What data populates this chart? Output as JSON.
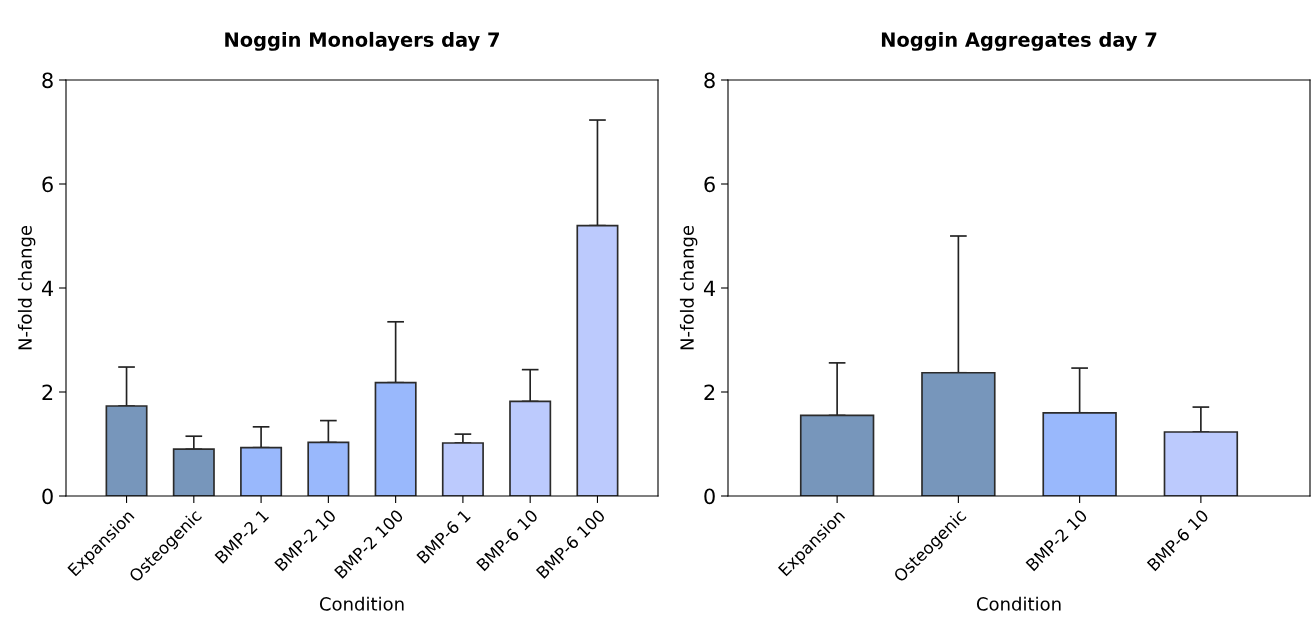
{
  "chart_data": [
    {
      "type": "bar",
      "title": "Noggin Monolayers day 7",
      "xlabel": "Condition",
      "ylabel": "N-fold change",
      "categories": [
        "Expansion",
        "Osteogenic",
        "BMP-2 1",
        "BMP-2 10",
        "BMP-2 100",
        "BMP-6 1",
        "BMP-6 10",
        "BMP-6 100"
      ],
      "values": [
        1.73,
        0.9,
        0.93,
        1.03,
        2.18,
        1.02,
        1.82,
        5.2
      ],
      "errors": [
        [
          1.73,
          2.48
        ],
        [
          0.9,
          1.15
        ],
        [
          0.93,
          1.33
        ],
        [
          1.03,
          1.45
        ],
        [
          2.18,
          3.35
        ],
        [
          1.02,
          1.19
        ],
        [
          1.82,
          2.43
        ],
        [
          5.2,
          7.23
        ]
      ],
      "colors": [
        "#7796bb",
        "#7796bb",
        "#99b8fc",
        "#99b8fc",
        "#99b8fc",
        "#bccafd",
        "#bccafd",
        "#bccafd"
      ],
      "ylim": [
        0,
        8
      ],
      "yticks": [
        0,
        2,
        4,
        6,
        8
      ],
      "grid": false,
      "legend": false
    },
    {
      "type": "bar",
      "title": "Noggin Aggregates day 7",
      "xlabel": "Condition",
      "ylabel": "N-fold change",
      "categories": [
        "Expansion",
        "Osteogenic",
        "BMP-2 10",
        "BMP-6 10"
      ],
      "values": [
        1.55,
        2.37,
        1.6,
        1.23
      ],
      "errors": [
        [
          1.55,
          2.56
        ],
        [
          2.37,
          5.0
        ],
        [
          1.6,
          2.46
        ],
        [
          1.23,
          1.71
        ]
      ],
      "colors": [
        "#7796bb",
        "#7796bb",
        "#99b8fc",
        "#bccafd"
      ],
      "ylim": [
        0,
        8
      ],
      "yticks": [
        0,
        2,
        4,
        6,
        8
      ],
      "grid": false,
      "legend": false
    }
  ]
}
